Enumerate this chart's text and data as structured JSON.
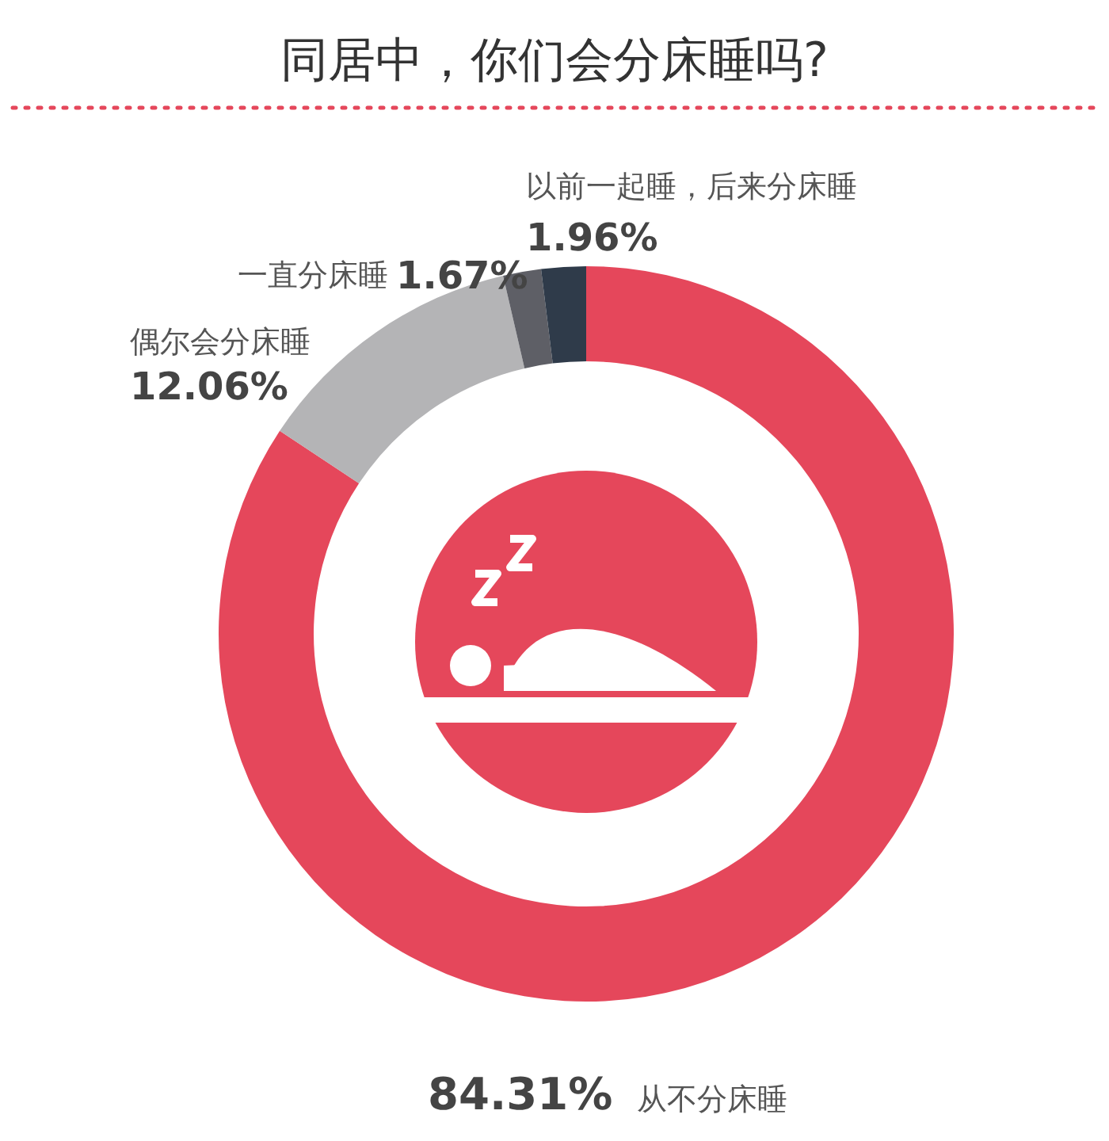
{
  "chart_data": {
    "type": "donut",
    "title": "同居中，你们会分床睡吗?",
    "categories": [
      "从不分床睡",
      "偶尔会分床睡",
      "一直分床睡",
      "以前一起睡，后来分床睡"
    ],
    "values": [
      84.31,
      12.06,
      1.67,
      1.96
    ],
    "value_labels": [
      "84.31%",
      "12.06%",
      "1.67%",
      "1.96%"
    ],
    "colors": [
      "#e5475b",
      "#b4b4b6",
      "#5e5f66",
      "#2f3b4a"
    ]
  }
}
